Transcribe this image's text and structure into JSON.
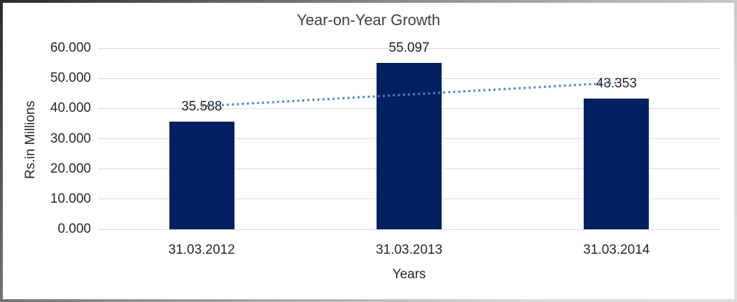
{
  "chart_data": {
    "type": "bar",
    "title": "Year-on-Year Growth",
    "xlabel": "Years",
    "ylabel": "Rs.in Millions",
    "categories": [
      "31.03.2012",
      "31.03.2013",
      "31.03.2014"
    ],
    "values": [
      35.588,
      55.097,
      43.353
    ],
    "value_labels": [
      "35.588",
      "55.097",
      "43.353"
    ],
    "ylim": [
      0,
      60
    ],
    "ytick_step": 10,
    "ytick_labels": [
      "0.000",
      "10.000",
      "20.000",
      "30.000",
      "40.000",
      "50.000",
      "60.000"
    ],
    "grid": true,
    "legend": "none",
    "bar_color": "#002060",
    "gridline_color": "#d9d9d9",
    "trendline": {
      "type": "linear",
      "style": "dotted",
      "color": "#4f86c6"
    }
  }
}
